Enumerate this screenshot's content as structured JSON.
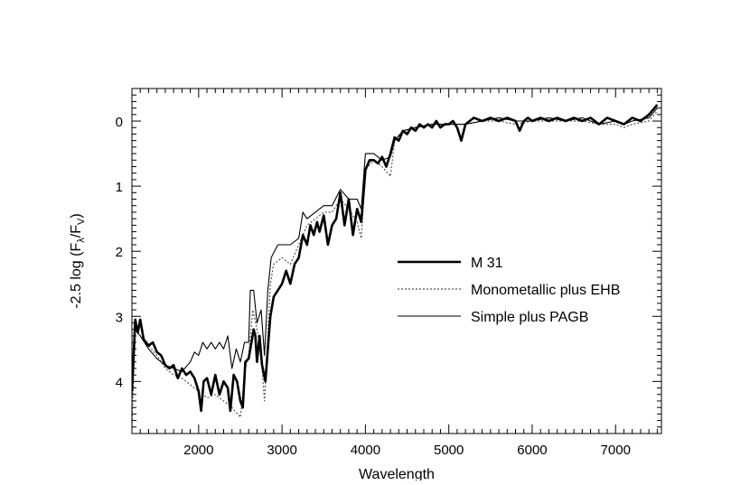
{
  "chart_data": {
    "type": "line",
    "xlabel": "Wavelength",
    "ylabel": {
      "prefix": "-2.5 log (F",
      "sub1": "λ",
      "mid": "/F",
      "sub2": "V",
      "suffix": ")"
    },
    "xlim": [
      1200,
      7550
    ],
    "ylim": [
      4.8,
      -0.5
    ],
    "y_inverted": true,
    "xticks": [
      "2000",
      "3000",
      "4000",
      "5000",
      "6000",
      "7000"
    ],
    "yticks": [
      "0",
      "1",
      "2",
      "3",
      "4"
    ],
    "legend_position": "center-right",
    "series": [
      {
        "name": "M 31",
        "style": "thick-solid",
        "points": [
          [
            1200,
            4.15
          ],
          [
            1240,
            3.05
          ],
          [
            1270,
            3.25
          ],
          [
            1300,
            3.05
          ],
          [
            1340,
            3.35
          ],
          [
            1400,
            3.45
          ],
          [
            1450,
            3.4
          ],
          [
            1500,
            3.55
          ],
          [
            1550,
            3.6
          ],
          [
            1600,
            3.75
          ],
          [
            1650,
            3.8
          ],
          [
            1700,
            3.75
          ],
          [
            1750,
            3.95
          ],
          [
            1800,
            3.8
          ],
          [
            1850,
            3.9
          ],
          [
            1900,
            3.85
          ],
          [
            1950,
            3.95
          ],
          [
            2000,
            4.15
          ],
          [
            2030,
            4.45
          ],
          [
            2060,
            4.0
          ],
          [
            2100,
            3.95
          ],
          [
            2150,
            4.2
          ],
          [
            2200,
            3.9
          ],
          [
            2250,
            4.2
          ],
          [
            2300,
            4.0
          ],
          [
            2350,
            4.1
          ],
          [
            2380,
            4.45
          ],
          [
            2420,
            3.9
          ],
          [
            2460,
            4.0
          ],
          [
            2500,
            4.3
          ],
          [
            2530,
            4.4
          ],
          [
            2560,
            3.7
          ],
          [
            2600,
            3.65
          ],
          [
            2640,
            3.35
          ],
          [
            2660,
            3.2
          ],
          [
            2680,
            3.3
          ],
          [
            2700,
            3.7
          ],
          [
            2730,
            3.3
          ],
          [
            2760,
            3.75
          ],
          [
            2800,
            4.0
          ],
          [
            2830,
            3.5
          ],
          [
            2860,
            3.0
          ],
          [
            2900,
            2.7
          ],
          [
            2950,
            2.6
          ],
          [
            3000,
            2.5
          ],
          [
            3050,
            2.3
          ],
          [
            3100,
            2.5
          ],
          [
            3150,
            2.2
          ],
          [
            3200,
            2.1
          ],
          [
            3250,
            1.75
          ],
          [
            3300,
            1.9
          ],
          [
            3340,
            1.6
          ],
          [
            3380,
            1.75
          ],
          [
            3420,
            1.55
          ],
          [
            3450,
            1.7
          ],
          [
            3500,
            1.45
          ],
          [
            3550,
            1.9
          ],
          [
            3600,
            1.6
          ],
          [
            3650,
            1.5
          ],
          [
            3700,
            1.1
          ],
          [
            3750,
            1.6
          ],
          [
            3800,
            1.2
          ],
          [
            3850,
            1.75
          ],
          [
            3900,
            1.35
          ],
          [
            3950,
            1.55
          ],
          [
            4000,
            0.75
          ],
          [
            4050,
            0.6
          ],
          [
            4100,
            0.6
          ],
          [
            4150,
            0.65
          ],
          [
            4200,
            0.55
          ],
          [
            4250,
            0.7
          ],
          [
            4300,
            0.5
          ],
          [
            4350,
            0.25
          ],
          [
            4400,
            0.3
          ],
          [
            4450,
            0.15
          ],
          [
            4500,
            0.2
          ],
          [
            4550,
            0.1
          ],
          [
            4600,
            0.15
          ],
          [
            4650,
            0.05
          ],
          [
            4700,
            0.1
          ],
          [
            4750,
            0.05
          ],
          [
            4800,
            0.1
          ],
          [
            4850,
            0.0
          ],
          [
            4900,
            0.1
          ],
          [
            4950,
            0.05
          ],
          [
            5000,
            0.05
          ],
          [
            5050,
            0.0
          ],
          [
            5100,
            0.1
          ],
          [
            5150,
            0.3
          ],
          [
            5200,
            0.05
          ],
          [
            5250,
            0.0
          ],
          [
            5300,
            -0.05
          ],
          [
            5400,
            0.0
          ],
          [
            5500,
            -0.05
          ],
          [
            5600,
            0.0
          ],
          [
            5700,
            -0.05
          ],
          [
            5800,
            0.0
          ],
          [
            5850,
            0.15
          ],
          [
            5900,
            0.0
          ],
          [
            5950,
            -0.05
          ],
          [
            6000,
            0.0
          ],
          [
            6100,
            -0.05
          ],
          [
            6200,
            0.0
          ],
          [
            6300,
            -0.05
          ],
          [
            6400,
            0.0
          ],
          [
            6500,
            -0.05
          ],
          [
            6600,
            0.0
          ],
          [
            6700,
            -0.05
          ],
          [
            6800,
            0.05
          ],
          [
            6900,
            -0.05
          ],
          [
            7000,
            0.0
          ],
          [
            7100,
            0.05
          ],
          [
            7200,
            -0.05
          ],
          [
            7300,
            0.0
          ],
          [
            7400,
            -0.1
          ],
          [
            7500,
            -0.25
          ]
        ]
      },
      {
        "name": "Monometallic plus EHB",
        "style": "dotted",
        "points": [
          [
            1200,
            4.7
          ],
          [
            1240,
            3.2
          ],
          [
            1300,
            3.3
          ],
          [
            1400,
            3.45
          ],
          [
            1500,
            3.6
          ],
          [
            1600,
            3.8
          ],
          [
            1700,
            3.9
          ],
          [
            1800,
            3.95
          ],
          [
            1900,
            4.05
          ],
          [
            2000,
            4.15
          ],
          [
            2100,
            4.25
          ],
          [
            2200,
            4.2
          ],
          [
            2300,
            4.3
          ],
          [
            2400,
            4.4
          ],
          [
            2500,
            4.55
          ],
          [
            2560,
            3.8
          ],
          [
            2600,
            3.6
          ],
          [
            2650,
            2.9
          ],
          [
            2700,
            3.2
          ],
          [
            2750,
            3.6
          ],
          [
            2790,
            4.3
          ],
          [
            2830,
            3.3
          ],
          [
            2860,
            2.5
          ],
          [
            2900,
            2.2
          ],
          [
            3000,
            2.1
          ],
          [
            3100,
            2.2
          ],
          [
            3200,
            1.9
          ],
          [
            3300,
            1.6
          ],
          [
            3400,
            1.5
          ],
          [
            3500,
            1.4
          ],
          [
            3600,
            1.4
          ],
          [
            3700,
            1.2
          ],
          [
            3800,
            1.35
          ],
          [
            3900,
            1.55
          ],
          [
            3950,
            1.8
          ],
          [
            4000,
            0.75
          ],
          [
            4100,
            0.6
          ],
          [
            4200,
            0.7
          ],
          [
            4300,
            0.85
          ],
          [
            4350,
            0.3
          ],
          [
            4450,
            0.15
          ],
          [
            4600,
            0.1
          ],
          [
            4800,
            0.05
          ],
          [
            5000,
            0.05
          ],
          [
            5200,
            0.05
          ],
          [
            5400,
            0.0
          ],
          [
            5600,
            0.0
          ],
          [
            5800,
            0.05
          ],
          [
            6000,
            0.0
          ],
          [
            6200,
            0.0
          ],
          [
            6400,
            0.0
          ],
          [
            6600,
            0.0
          ],
          [
            6800,
            0.05
          ],
          [
            7000,
            0.05
          ],
          [
            7100,
            0.1
          ],
          [
            7200,
            0.05
          ],
          [
            7400,
            0.0
          ],
          [
            7500,
            -0.15
          ]
        ]
      },
      {
        "name": "Simple plus PAGB",
        "style": "thin-solid",
        "points": [
          [
            1200,
            4.25
          ],
          [
            1240,
            3.2
          ],
          [
            1300,
            3.3
          ],
          [
            1400,
            3.5
          ],
          [
            1500,
            3.65
          ],
          [
            1600,
            3.75
          ],
          [
            1700,
            3.8
          ],
          [
            1800,
            3.85
          ],
          [
            1900,
            3.7
          ],
          [
            1950,
            3.55
          ],
          [
            2000,
            3.6
          ],
          [
            2050,
            3.4
          ],
          [
            2100,
            3.5
          ],
          [
            2150,
            3.4
          ],
          [
            2200,
            3.5
          ],
          [
            2250,
            3.4
          ],
          [
            2300,
            3.5
          ],
          [
            2350,
            3.3
          ],
          [
            2400,
            3.8
          ],
          [
            2450,
            3.5
          ],
          [
            2500,
            3.7
          ],
          [
            2550,
            3.4
          ],
          [
            2600,
            3.4
          ],
          [
            2620,
            2.6
          ],
          [
            2660,
            2.6
          ],
          [
            2700,
            3.1
          ],
          [
            2750,
            2.9
          ],
          [
            2790,
            3.6
          ],
          [
            2830,
            2.6
          ],
          [
            2870,
            2.1
          ],
          [
            2950,
            1.9
          ],
          [
            3000,
            1.9
          ],
          [
            3100,
            1.9
          ],
          [
            3200,
            1.8
          ],
          [
            3250,
            1.4
          ],
          [
            3300,
            1.5
          ],
          [
            3400,
            1.4
          ],
          [
            3500,
            1.3
          ],
          [
            3600,
            1.3
          ],
          [
            3700,
            1.05
          ],
          [
            3800,
            1.2
          ],
          [
            3900,
            1.2
          ],
          [
            3950,
            1.35
          ],
          [
            4000,
            0.5
          ],
          [
            4100,
            0.5
          ],
          [
            4200,
            0.6
          ],
          [
            4300,
            0.55
          ],
          [
            4350,
            0.3
          ],
          [
            4450,
            0.15
          ],
          [
            4600,
            0.1
          ],
          [
            4800,
            0.05
          ],
          [
            5000,
            0.05
          ],
          [
            5200,
            0.05
          ],
          [
            5400,
            0.0
          ],
          [
            5600,
            -0.05
          ],
          [
            5800,
            0.0
          ],
          [
            6000,
            0.0
          ],
          [
            6200,
            -0.05
          ],
          [
            6400,
            0.0
          ],
          [
            6600,
            -0.05
          ],
          [
            6800,
            0.05
          ],
          [
            7000,
            0.0
          ],
          [
            7100,
            0.05
          ],
          [
            7200,
            0.0
          ],
          [
            7400,
            -0.05
          ],
          [
            7500,
            -0.2
          ]
        ]
      }
    ]
  }
}
